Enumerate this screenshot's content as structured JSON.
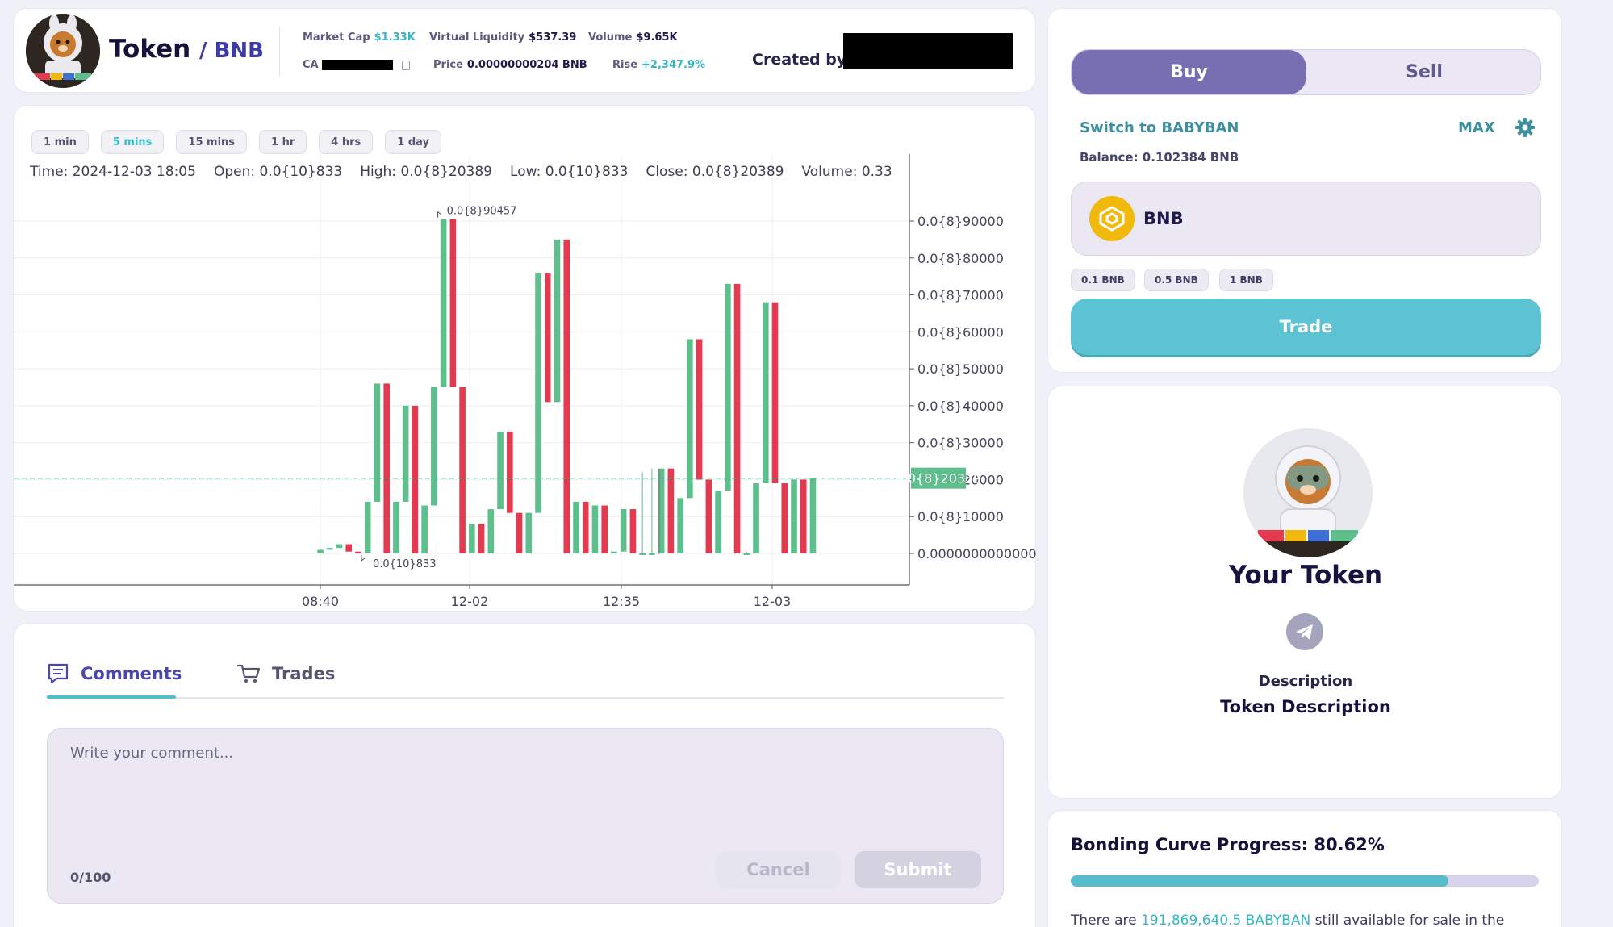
{
  "header": {
    "token_name": "Token",
    "pair_label": "/ BNB",
    "market_cap_label": "Market Cap",
    "market_cap_value": "$1.33K",
    "virtual_liquidity_label": "Virtual Liquidity",
    "virtual_liquidity_value": "$537.39",
    "volume_label": "Volume",
    "volume_value": "$9.65K",
    "ca_label": "CA",
    "price_label": "Price",
    "price_value": "0.00000000204 BNB",
    "rise_label": "Rise",
    "rise_value": "+2,347.9%",
    "created_by_label": "Created by"
  },
  "chart": {
    "timeframes": [
      "1 min",
      "5 mins",
      "15 mins",
      "1 hr",
      "4 hrs",
      "1 day"
    ],
    "active_timeframe": 1,
    "ohlc": {
      "time": "Time: 2024-12-03 18:05",
      "open": "Open: 0.0{10}833",
      "high": "High: 0.0{8}20389",
      "low": "Low: 0.0{10}833",
      "close": "Close: 0.0{8}20389",
      "volume": "Volume: 0.33"
    },
    "high_marker": "0.0{8}90457",
    "low_marker": "0.0{10}833",
    "current_price_label": "0.0{8}20389"
  },
  "chart_data": {
    "type": "candlestick",
    "y_unit": "x1e-8 BNB",
    "y_tick_labels": [
      "0.0{8}90000",
      "0.0{8}80000",
      "0.0{8}70000",
      "0.0{8}60000",
      "0.0{8}50000",
      "0.0{8}40000",
      "0.0{8}30000",
      "0.0{8}20000",
      "0.0{8}10000",
      "0.0000000000000"
    ],
    "y_tick_values": [
      9,
      8,
      7,
      6,
      5,
      4,
      3,
      2,
      1,
      0
    ],
    "ylim": [
      0,
      9.5
    ],
    "x_tick_labels": [
      "08:40",
      "12-02",
      "12:35",
      "12-03"
    ],
    "current_price": 2.0389,
    "grid": true,
    "candles": [
      {
        "o": 0.0,
        "h": 0.1,
        "l": 0.0,
        "c": 0.1
      },
      {
        "o": 0.1,
        "h": 0.15,
        "l": 0.1,
        "c": 0.15
      },
      {
        "o": 0.15,
        "h": 0.25,
        "l": 0.15,
        "c": 0.25
      },
      {
        "o": 0.25,
        "h": 0.25,
        "l": 0.05,
        "c": 0.05
      },
      {
        "o": 0.05,
        "h": 0.05,
        "l": 0.0,
        "c": 0.0
      },
      {
        "o": 0.0,
        "h": 1.4,
        "l": 0.0,
        "c": 1.4
      },
      {
        "o": 1.4,
        "h": 4.6,
        "l": 1.4,
        "c": 4.6
      },
      {
        "o": 4.6,
        "h": 4.6,
        "l": 0.0,
        "c": 0.0
      },
      {
        "o": 0.0,
        "h": 1.4,
        "l": 0.0,
        "c": 1.4
      },
      {
        "o": 1.4,
        "h": 4.0,
        "l": 1.4,
        "c": 4.0
      },
      {
        "o": 4.0,
        "h": 4.0,
        "l": 0.0,
        "c": 0.0
      },
      {
        "o": 0.0,
        "h": 1.3,
        "l": 0.0,
        "c": 1.3
      },
      {
        "o": 1.3,
        "h": 4.5,
        "l": 1.3,
        "c": 4.5
      },
      {
        "o": 4.5,
        "h": 9.05,
        "l": 4.5,
        "c": 9.05
      },
      {
        "o": 9.05,
        "h": 9.05,
        "l": 4.5,
        "c": 4.5
      },
      {
        "o": 4.5,
        "h": 4.5,
        "l": 0.0,
        "c": 0.0
      },
      {
        "o": 0.0,
        "h": 0.8,
        "l": 0.0,
        "c": 0.8
      },
      {
        "o": 0.8,
        "h": 0.8,
        "l": 0.0,
        "c": 0.0
      },
      {
        "o": 0.0,
        "h": 1.2,
        "l": 0.0,
        "c": 1.2
      },
      {
        "o": 1.2,
        "h": 3.3,
        "l": 1.2,
        "c": 3.3
      },
      {
        "o": 3.3,
        "h": 3.3,
        "l": 1.1,
        "c": 1.1
      },
      {
        "o": 1.1,
        "h": 1.1,
        "l": 0.0,
        "c": 0.0
      },
      {
        "o": 0.0,
        "h": 1.1,
        "l": 0.0,
        "c": 1.1
      },
      {
        "o": 1.1,
        "h": 7.6,
        "l": 1.1,
        "c": 7.6
      },
      {
        "o": 7.6,
        "h": 7.6,
        "l": 4.1,
        "c": 4.1
      },
      {
        "o": 4.1,
        "h": 8.5,
        "l": 4.1,
        "c": 8.5
      },
      {
        "o": 8.5,
        "h": 8.5,
        "l": 0.0,
        "c": 0.0
      },
      {
        "o": 0.0,
        "h": 1.4,
        "l": 0.0,
        "c": 1.4
      },
      {
        "o": 1.4,
        "h": 1.4,
        "l": 0.0,
        "c": 0.0
      },
      {
        "o": 0.0,
        "h": 1.3,
        "l": 0.0,
        "c": 1.3
      },
      {
        "o": 1.3,
        "h": 1.3,
        "l": 0.0,
        "c": 0.0
      },
      {
        "o": 0.0,
        "h": 0.05,
        "l": 0.0,
        "c": 0.05
      },
      {
        "o": 0.05,
        "h": 1.2,
        "l": 0.05,
        "c": 1.2
      },
      {
        "o": 1.2,
        "h": 1.2,
        "l": 0.0,
        "c": 0.0
      },
      {
        "o": 0.0,
        "h": 2.2,
        "l": 0.0,
        "c": 0.0
      },
      {
        "o": 0.0,
        "h": 2.3,
        "l": 0.0,
        "c": 0.0
      },
      {
        "o": 0.0,
        "h": 2.3,
        "l": 0.0,
        "c": 2.3
      },
      {
        "o": 2.3,
        "h": 2.3,
        "l": 0.0,
        "c": 0.0
      },
      {
        "o": 0.0,
        "h": 1.5,
        "l": 0.0,
        "c": 1.5
      },
      {
        "o": 1.5,
        "h": 5.8,
        "l": 1.5,
        "c": 5.8
      },
      {
        "o": 5.8,
        "h": 5.8,
        "l": 2.0,
        "c": 2.0
      },
      {
        "o": 2.0,
        "h": 2.0,
        "l": 0.0,
        "c": 0.0
      },
      {
        "o": 0.0,
        "h": 1.7,
        "l": 0.0,
        "c": 1.7
      },
      {
        "o": 1.7,
        "h": 7.3,
        "l": 1.7,
        "c": 7.3
      },
      {
        "o": 7.3,
        "h": 7.3,
        "l": 0.0,
        "c": 0.0
      },
      {
        "o": 0.0,
        "h": 0.05,
        "l": 0.0,
        "c": 0.0
      },
      {
        "o": 0.0,
        "h": 1.9,
        "l": 0.0,
        "c": 1.9
      },
      {
        "o": 1.9,
        "h": 6.8,
        "l": 1.9,
        "c": 6.8
      },
      {
        "o": 6.8,
        "h": 6.8,
        "l": 1.9,
        "c": 1.9
      },
      {
        "o": 1.9,
        "h": 1.9,
        "l": 0.0,
        "c": 0.0
      },
      {
        "o": 0.0,
        "h": 2.0,
        "l": 0.0,
        "c": 2.0
      },
      {
        "o": 2.0,
        "h": 2.0,
        "l": 0.0,
        "c": 0.0
      },
      {
        "o": 0.0,
        "h": 2.04,
        "l": 0.0,
        "c": 2.04
      }
    ]
  },
  "comments": {
    "tab_comments": "Comments",
    "tab_trades": "Trades",
    "placeholder": "Write your comment...",
    "count": "0/100",
    "cancel": "Cancel",
    "submit": "Submit"
  },
  "trade": {
    "buy": "Buy",
    "sell": "Sell",
    "switch": "Switch to BABYBAN",
    "max": "MAX",
    "balance": "Balance: 0.102384 BNB",
    "currency": "BNB",
    "quick_amounts": [
      "0.1 BNB",
      "0.5 BNB",
      "1 BNB"
    ],
    "trade_button": "Trade"
  },
  "token_info": {
    "name": "Your Token",
    "description_label": "Description",
    "description": "Token Description"
  },
  "bonding": {
    "title": "Bonding Curve Progress: 80.62%",
    "progress": 0.8062,
    "text_prefix": "There are",
    "text_amount": "191,869,640.5 BABYBAN",
    "text_suffix": "still available for sale in the"
  },
  "colors": {
    "up": "#5cbf8c",
    "down": "#e4394f",
    "accent": "#5bc3d1",
    "brand": "#7670b3"
  }
}
